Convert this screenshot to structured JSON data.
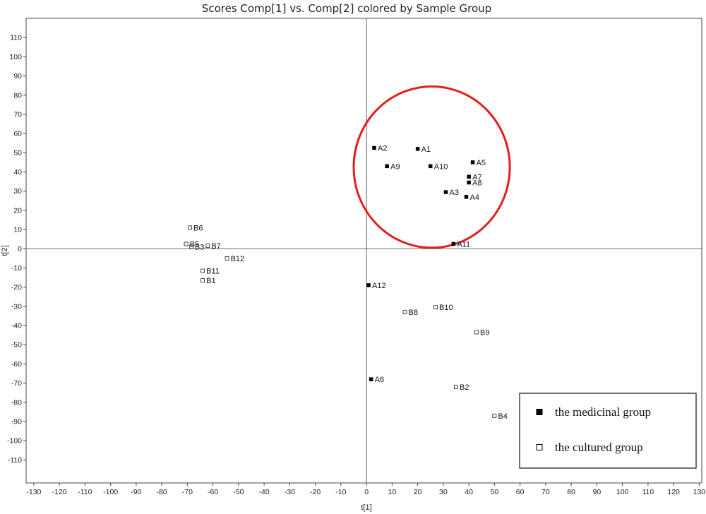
{
  "chart_data": {
    "type": "scatter",
    "title": "Scores Comp[1] vs. Comp[2] colored by Sample Group",
    "xlabel": "t[1]",
    "ylabel": "t[2]",
    "xlim": [
      -133,
      131
    ],
    "ylim": [
      -122,
      120
    ],
    "xticks": [
      -130,
      -120,
      -110,
      -100,
      -90,
      -80,
      -70,
      -60,
      -50,
      -40,
      -30,
      -20,
      -10,
      0,
      10,
      20,
      30,
      40,
      50,
      60,
      70,
      80,
      90,
      100,
      110,
      120,
      130
    ],
    "yticks": [
      110,
      100,
      90,
      80,
      70,
      60,
      50,
      40,
      30,
      20,
      10,
      0,
      -10,
      -20,
      -30,
      -40,
      -50,
      -60,
      -70,
      -80,
      -90,
      -100,
      -110
    ],
    "grid": false,
    "legend_position": "bottom-right",
    "highlight": {
      "shape": "circle",
      "color": "#e0201b",
      "center": [
        25.5,
        42.5
      ],
      "radius_x": 30.5,
      "radius_y": 42
    },
    "series": [
      {
        "name": "the medicinal group",
        "marker": "filled-square",
        "color": "#000000",
        "points": [
          {
            "label": "A1",
            "x": 20,
            "y": 52
          },
          {
            "label": "A2",
            "x": 3,
            "y": 52.5
          },
          {
            "label": "A3",
            "x": 31,
            "y": 29.5
          },
          {
            "label": "A4",
            "x": 39,
            "y": 27
          },
          {
            "label": "A5",
            "x": 41.5,
            "y": 45
          },
          {
            "label": "A6",
            "x": 1.8,
            "y": -68
          },
          {
            "label": "A7",
            "x": 40,
            "y": 37.5
          },
          {
            "label": "A8",
            "x": 40,
            "y": 34.5
          },
          {
            "label": "A9",
            "x": 8,
            "y": 43
          },
          {
            "label": "A10",
            "x": 25,
            "y": 43
          },
          {
            "label": "A11",
            "x": 34,
            "y": 2.5
          },
          {
            "label": "A12",
            "x": 0.8,
            "y": -19
          }
        ]
      },
      {
        "name": "the cultured group",
        "marker": "open-square",
        "color": "#000000",
        "points": [
          {
            "label": "B1",
            "x": -64,
            "y": -16.5
          },
          {
            "label": "B2",
            "x": 35,
            "y": -72
          },
          {
            "label": "B3",
            "x": -68.5,
            "y": 1
          },
          {
            "label": "B4",
            "x": 50,
            "y": -87
          },
          {
            "label": "B5",
            "x": -70.5,
            "y": 2.5
          },
          {
            "label": "B6",
            "x": -69,
            "y": 11
          },
          {
            "label": "B7",
            "x": -62,
            "y": 1.5
          },
          {
            "label": "B8",
            "x": 15,
            "y": -33
          },
          {
            "label": "B9",
            "x": 43,
            "y": -43.5
          },
          {
            "label": "B10",
            "x": 27,
            "y": -30.5
          },
          {
            "label": "B11",
            "x": -64,
            "y": -11.5
          },
          {
            "label": "B12",
            "x": -54.5,
            "y": -5
          }
        ]
      }
    ]
  }
}
